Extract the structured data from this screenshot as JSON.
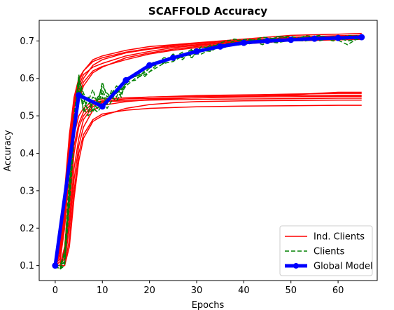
{
  "chart_data": {
    "type": "line",
    "title": "SCAFFOLD Accuracy",
    "xlabel": "Epochs",
    "ylabel": "Accuracy",
    "xlim": [
      -3.4,
      68.3
    ],
    "ylim": [
      0.06,
      0.755
    ],
    "xticks": [
      0,
      10,
      20,
      30,
      40,
      50,
      60
    ],
    "yticks": [
      0.1,
      0.2,
      0.3,
      0.4,
      0.5,
      0.6,
      0.7
    ],
    "grid": false,
    "legend_position": "lower-right",
    "legend": [
      "Ind. Clients",
      "Clients",
      "Global Model"
    ],
    "colors": {
      "ind_clients": "#ff0000",
      "clients": "#008000",
      "global_model": "#0000ff"
    },
    "global_model": {
      "name": "Global Model",
      "x": [
        0,
        5,
        10,
        15,
        20,
        25,
        30,
        35,
        40,
        45,
        50,
        55,
        60,
        65
      ],
      "y": [
        0.1,
        0.555,
        0.525,
        0.595,
        0.635,
        0.655,
        0.672,
        0.685,
        0.695,
        0.7,
        0.703,
        0.706,
        0.708,
        0.71
      ]
    },
    "ind_clients": {
      "name": "Ind. Clients",
      "x": [
        0,
        1,
        2,
        3,
        4,
        5,
        6,
        8,
        10,
        15,
        20,
        25,
        30,
        40,
        50,
        60,
        65
      ],
      "series": [
        [
          0.1,
          0.15,
          0.3,
          0.45,
          0.55,
          0.6,
          0.62,
          0.65,
          0.66,
          0.675,
          0.685,
          0.69,
          0.695,
          0.705,
          0.715,
          0.718,
          0.72
        ],
        [
          0.1,
          0.14,
          0.28,
          0.43,
          0.54,
          0.59,
          0.62,
          0.645,
          0.655,
          0.67,
          0.68,
          0.688,
          0.693,
          0.702,
          0.71,
          0.714,
          0.715
        ],
        [
          0.1,
          0.12,
          0.24,
          0.4,
          0.52,
          0.57,
          0.6,
          0.635,
          0.65,
          0.668,
          0.678,
          0.685,
          0.69,
          0.7,
          0.708,
          0.712,
          0.713
        ],
        [
          0.1,
          0.13,
          0.26,
          0.42,
          0.53,
          0.58,
          0.61,
          0.63,
          0.64,
          0.66,
          0.672,
          0.682,
          0.688,
          0.698,
          0.705,
          0.708,
          0.71
        ],
        [
          0.1,
          0.11,
          0.2,
          0.35,
          0.48,
          0.54,
          0.58,
          0.615,
          0.63,
          0.655,
          0.668,
          0.678,
          0.685,
          0.695,
          0.702,
          0.705,
          0.706
        ],
        [
          0.1,
          0.11,
          0.22,
          0.38,
          0.5,
          0.55,
          0.59,
          0.62,
          0.632,
          0.65,
          0.665,
          0.675,
          0.682,
          0.692,
          0.7,
          0.703,
          0.704
        ],
        [
          0.1,
          0.1,
          0.15,
          0.3,
          0.45,
          0.5,
          0.52,
          0.54,
          0.545,
          0.548,
          0.55,
          0.551,
          0.552,
          0.553,
          0.554,
          0.555,
          0.555
        ],
        [
          0.1,
          0.1,
          0.14,
          0.27,
          0.42,
          0.48,
          0.51,
          0.535,
          0.54,
          0.545,
          0.546,
          0.547,
          0.548,
          0.55,
          0.551,
          0.552,
          0.552
        ],
        [
          0.1,
          0.1,
          0.13,
          0.25,
          0.4,
          0.47,
          0.5,
          0.53,
          0.538,
          0.54,
          0.542,
          0.543,
          0.544,
          0.545,
          0.546,
          0.547,
          0.547
        ],
        [
          0.1,
          0.1,
          0.12,
          0.22,
          0.36,
          0.44,
          0.49,
          0.525,
          0.535,
          0.545,
          0.55,
          0.552,
          0.554,
          0.556,
          0.558,
          0.56,
          0.56
        ],
        [
          0.1,
          0.1,
          0.11,
          0.2,
          0.33,
          0.42,
          0.47,
          0.515,
          0.528,
          0.538,
          0.543,
          0.546,
          0.548,
          0.552,
          0.556,
          0.563,
          0.563
        ],
        [
          0.1,
          0.1,
          0.1,
          0.17,
          0.3,
          0.4,
          0.45,
          0.49,
          0.505,
          0.515,
          0.52,
          0.522,
          0.524,
          0.526,
          0.527,
          0.528,
          0.528
        ],
        [
          0.1,
          0.1,
          0.1,
          0.15,
          0.28,
          0.38,
          0.44,
          0.485,
          0.5,
          0.52,
          0.53,
          0.535,
          0.538,
          0.54,
          0.541,
          0.542,
          0.542
        ]
      ]
    },
    "clients": {
      "name": "Clients",
      "x": [
        0,
        1,
        2,
        3,
        4,
        5,
        6,
        7,
        8,
        9,
        10,
        11,
        12,
        13,
        14,
        15,
        17,
        19,
        21,
        23,
        25,
        27,
        29,
        31,
        33,
        35,
        38,
        41,
        44,
        47,
        50,
        53,
        56,
        59,
        62,
        65
      ],
      "series": [
        [
          0.1,
          0.1,
          0.11,
          0.3,
          0.48,
          0.6,
          0.56,
          0.54,
          0.57,
          0.53,
          0.59,
          0.55,
          0.56,
          0.57,
          0.55,
          0.595,
          0.605,
          0.615,
          0.64,
          0.645,
          0.66,
          0.655,
          0.67,
          0.68,
          0.675,
          0.69,
          0.695,
          0.7,
          0.705,
          0.7,
          0.705,
          0.708,
          0.7,
          0.71,
          0.705,
          0.712
        ],
        [
          0.1,
          0.09,
          0.14,
          0.33,
          0.5,
          0.61,
          0.53,
          0.52,
          0.53,
          0.52,
          0.57,
          0.54,
          0.56,
          0.58,
          0.57,
          0.6,
          0.61,
          0.625,
          0.635,
          0.65,
          0.65,
          0.665,
          0.66,
          0.672,
          0.685,
          0.68,
          0.69,
          0.695,
          0.7,
          0.708,
          0.7,
          0.712,
          0.705,
          0.708,
          0.71,
          0.708
        ],
        [
          0.1,
          0.1,
          0.12,
          0.28,
          0.46,
          0.59,
          0.51,
          0.55,
          0.51,
          0.55,
          0.56,
          0.53,
          0.57,
          0.55,
          0.58,
          0.59,
          0.595,
          0.62,
          0.645,
          0.64,
          0.665,
          0.65,
          0.675,
          0.67,
          0.69,
          0.685,
          0.7,
          0.705,
          0.695,
          0.71,
          0.712,
          0.705,
          0.715,
          0.705,
          0.712,
          0.715
        ],
        [
          0.1,
          0.09,
          0.1,
          0.26,
          0.44,
          0.57,
          0.52,
          0.5,
          0.52,
          0.51,
          0.53,
          0.54,
          0.55,
          0.54,
          0.56,
          0.58,
          0.6,
          0.61,
          0.625,
          0.64,
          0.645,
          0.66,
          0.665,
          0.665,
          0.678,
          0.69,
          0.688,
          0.692,
          0.7,
          0.695,
          0.702,
          0.7,
          0.706,
          0.712,
          0.7,
          0.706
        ],
        [
          0.1,
          0.1,
          0.13,
          0.31,
          0.47,
          0.58,
          0.54,
          0.53,
          0.55,
          0.54,
          0.58,
          0.56,
          0.55,
          0.56,
          0.57,
          0.585,
          0.615,
          0.605,
          0.63,
          0.655,
          0.655,
          0.67,
          0.655,
          0.685,
          0.68,
          0.695,
          0.705,
          0.698,
          0.71,
          0.705,
          0.698,
          0.714,
          0.71,
          0.7,
          0.715,
          0.71
        ],
        [
          0.1,
          0.09,
          0.11,
          0.27,
          0.45,
          0.6,
          0.55,
          0.51,
          0.54,
          0.52,
          0.55,
          0.52,
          0.54,
          0.57,
          0.56,
          0.598,
          0.605,
          0.63,
          0.635,
          0.648,
          0.658,
          0.662,
          0.678,
          0.675,
          0.672,
          0.688,
          0.692,
          0.703,
          0.69,
          0.712,
          0.708,
          0.702,
          0.712,
          0.708,
          0.69,
          0.713
        ]
      ]
    }
  }
}
